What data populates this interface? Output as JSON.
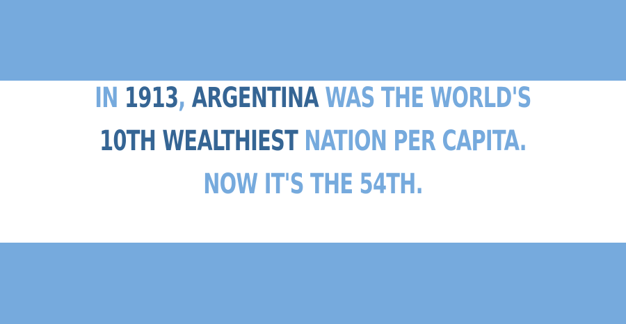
{
  "colors": {
    "stripe": "#76aadd",
    "light_text": "#76aadd",
    "dark_text": "#356594",
    "background": "#ffffff"
  },
  "fact": {
    "line1": [
      {
        "text": "IN ",
        "tone": "light"
      },
      {
        "text": "1913",
        "tone": "dark"
      },
      {
        "text": ", ",
        "tone": "light"
      },
      {
        "text": "ARGENTINA",
        "tone": "dark"
      },
      {
        "text": " WAS THE WORLD'S",
        "tone": "light"
      }
    ],
    "line2": [
      {
        "text": "10TH WEALTHIEST",
        "tone": "dark"
      },
      {
        "text": " NATION PER CAPITA.",
        "tone": "light"
      }
    ],
    "line3": [
      {
        "text": "NOW IT'S THE 54TH.",
        "tone": "light"
      }
    ]
  }
}
